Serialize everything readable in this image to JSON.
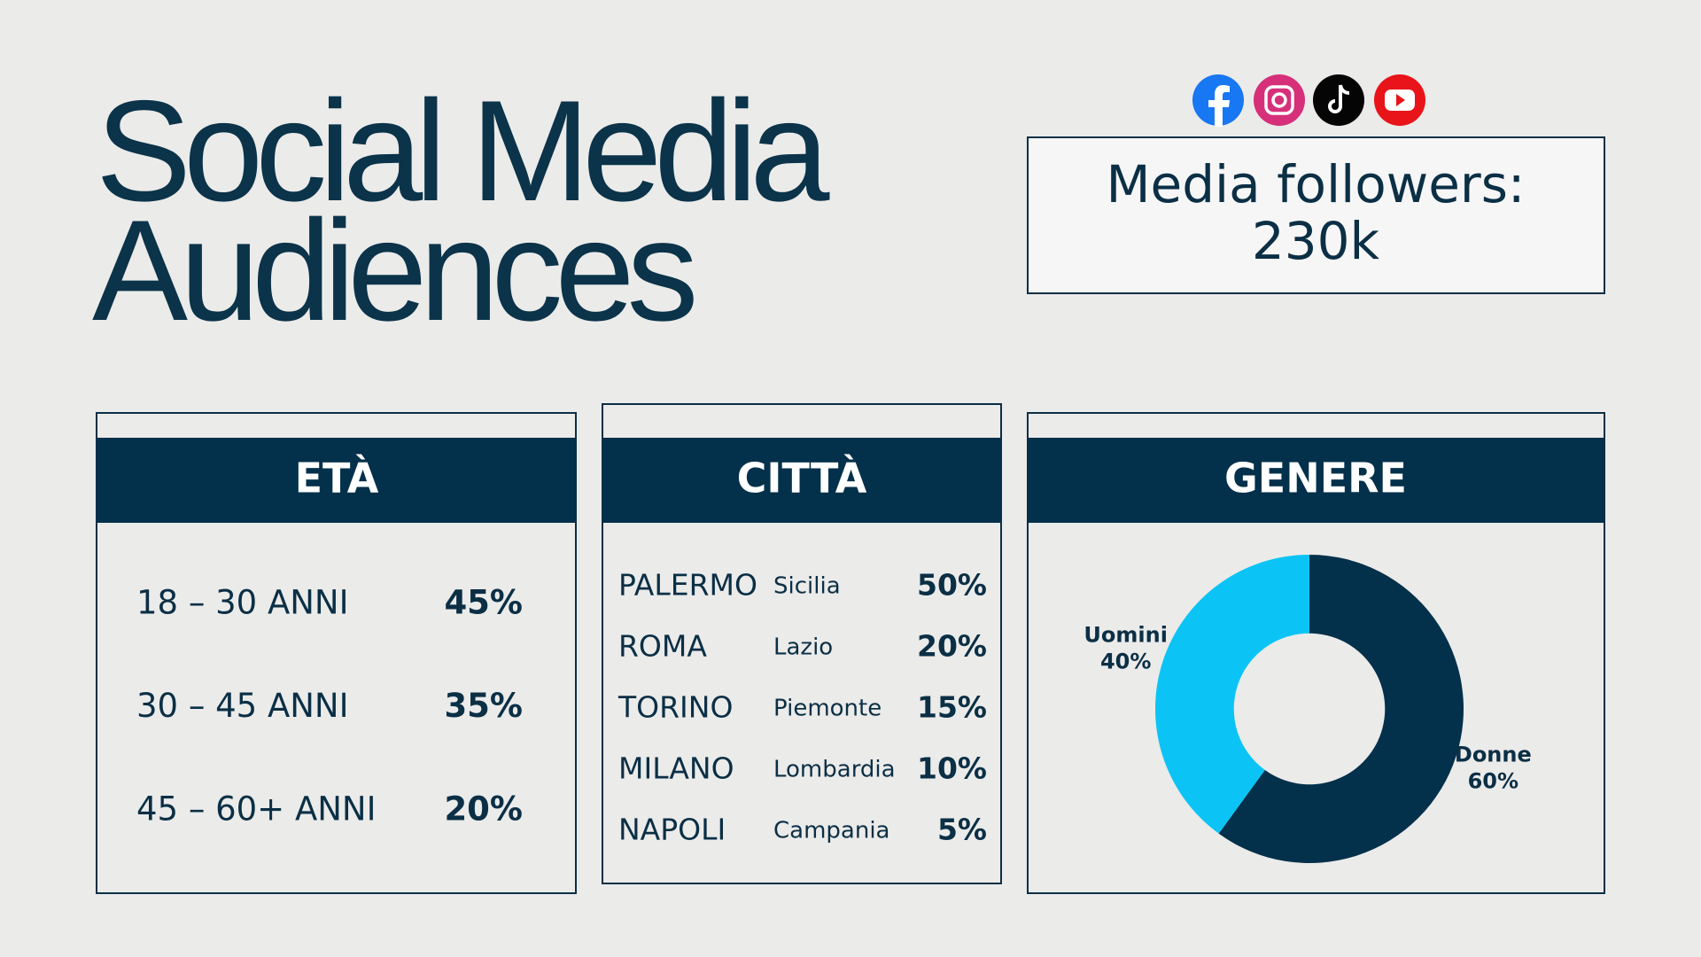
{
  "header": {
    "title_lines": [
      "Social Media",
      "Audiences"
    ]
  },
  "followers": {
    "label": "Media followers:",
    "value": "230k"
  },
  "age": {
    "heading": "ETÀ",
    "rows": [
      [
        "18 – 30 ANNI",
        "45%"
      ],
      [
        "30 – 45 ANNI",
        "35%"
      ],
      [
        "45 – 60+ ANNI",
        "20%"
      ]
    ]
  },
  "city": {
    "heading": "CITTÀ",
    "rows": [
      [
        "PALERMO",
        "Sicilia",
        "50%"
      ],
      [
        "ROMA",
        "Lazio",
        "20%"
      ],
      [
        "TORINO",
        "Piemonte",
        "15%"
      ],
      [
        "MILANO",
        "Lombardia",
        "10%"
      ],
      [
        "NAPOLI",
        "Campania",
        "5%"
      ]
    ]
  },
  "chart_data": {
    "type": "pie",
    "title": "GENERE",
    "categories": [
      "Uomini",
      "Donne"
    ],
    "values": [
      40,
      60
    ],
    "value_labels": [
      "40%",
      "60%"
    ],
    "colors": [
      "#0bc4f5",
      "#03304a"
    ],
    "inner_radius_ratio": 0.49
  }
}
